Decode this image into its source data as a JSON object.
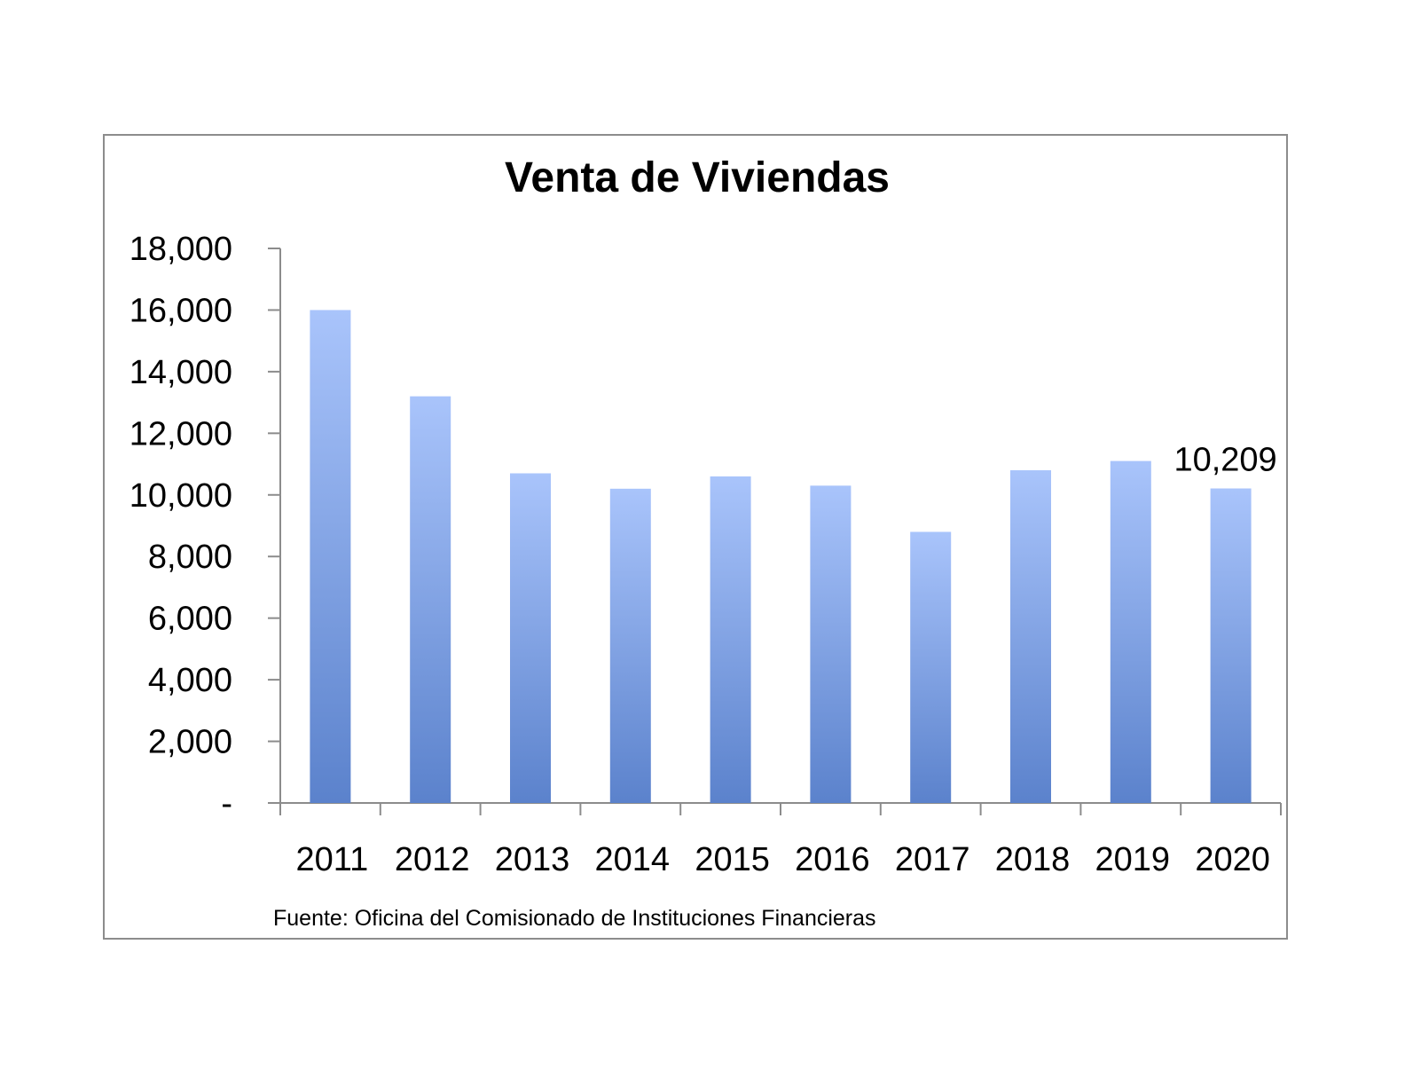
{
  "chart_data": {
    "type": "bar",
    "title": "Venta de Viviendas",
    "xlabel": "",
    "ylabel": "",
    "categories": [
      "2011",
      "2012",
      "2013",
      "2014",
      "2015",
      "2016",
      "2017",
      "2018",
      "2019",
      "2020"
    ],
    "values": [
      16000,
      13200,
      10700,
      10200,
      10600,
      10300,
      8800,
      10800,
      11100,
      10209
    ],
    "ylim": [
      0,
      18000
    ],
    "yticks": [
      0,
      2000,
      4000,
      6000,
      8000,
      10000,
      12000,
      14000,
      16000,
      18000
    ],
    "ytick_labels": [
      "-",
      "2,000",
      "4,000",
      "6,000",
      "8,000",
      "10,000",
      "12,000",
      "14,000",
      "16,000",
      "18,000"
    ],
    "data_labels": [
      {
        "category": "2020",
        "text": "10,209"
      }
    ],
    "grid": false,
    "legend": "none",
    "colors": {
      "bar_top": "#a9c4fb",
      "bar_bottom": "#5b82cc",
      "axis": "#8c8c8c",
      "frame": "#8c8c8c"
    }
  },
  "source_note": "Fuente: Oficina del Comisionado de Instituciones Financieras"
}
